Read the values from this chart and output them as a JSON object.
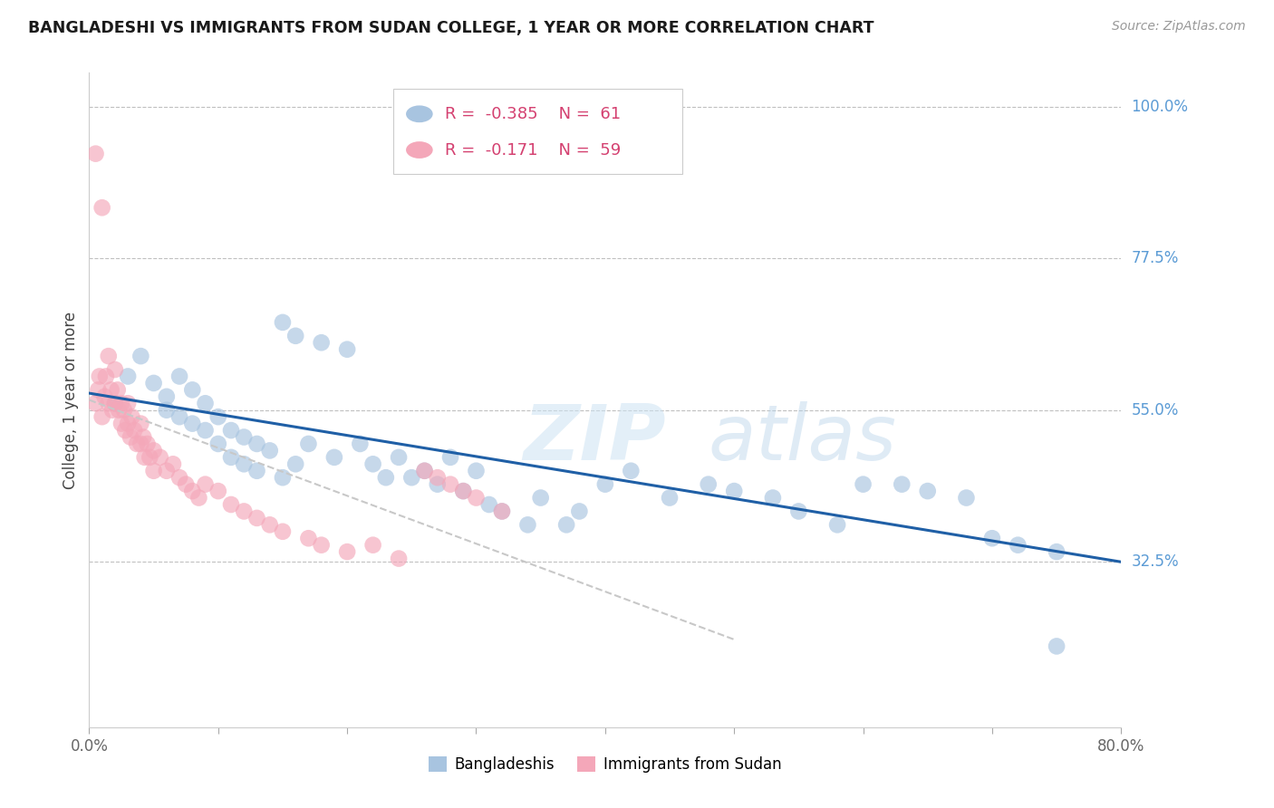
{
  "title": "BANGLADESHI VS IMMIGRANTS FROM SUDAN COLLEGE, 1 YEAR OR MORE CORRELATION CHART",
  "source": "Source: ZipAtlas.com",
  "ylabel": "College, 1 year or more",
  "xlim": [
    0.0,
    0.8
  ],
  "ylim": [
    0.08,
    1.05
  ],
  "xticks": [
    0.0,
    0.1,
    0.2,
    0.3,
    0.4,
    0.5,
    0.6,
    0.7,
    0.8
  ],
  "xticklabels": [
    "0.0%",
    "",
    "",
    "",
    "",
    "",
    "",
    "",
    "80.0%"
  ],
  "yticks": [
    0.325,
    0.55,
    0.775,
    1.0
  ],
  "yticklabels": [
    "32.5%",
    "55.0%",
    "77.5%",
    "100.0%"
  ],
  "ytick_color": "#5b9bd5",
  "grid_color": "#c0c0c0",
  "watermark_text": "ZIPatlas",
  "legend_r1": "-0.385",
  "legend_n1": "61",
  "legend_r2": "-0.171",
  "legend_n2": "59",
  "blue_color": "#a8c4e0",
  "pink_color": "#f4a7b9",
  "trend_blue_color": "#1f5fa6",
  "trend_pink_color": "#c8c8c8",
  "blue_trend_x0": 0.0,
  "blue_trend_y0": 0.575,
  "blue_trend_x1": 0.8,
  "blue_trend_y1": 0.325,
  "pink_trend_x0": 0.0,
  "pink_trend_y0": 0.565,
  "pink_trend_x1": 0.5,
  "pink_trend_y1": 0.21,
  "bangladeshi_x": [
    0.02,
    0.03,
    0.04,
    0.05,
    0.06,
    0.06,
    0.07,
    0.07,
    0.08,
    0.08,
    0.09,
    0.09,
    0.1,
    0.1,
    0.11,
    0.11,
    0.12,
    0.12,
    0.13,
    0.13,
    0.14,
    0.15,
    0.15,
    0.16,
    0.16,
    0.17,
    0.18,
    0.19,
    0.2,
    0.21,
    0.22,
    0.23,
    0.24,
    0.25,
    0.26,
    0.27,
    0.28,
    0.29,
    0.3,
    0.31,
    0.32,
    0.34,
    0.35,
    0.37,
    0.38,
    0.4,
    0.42,
    0.45,
    0.48,
    0.5,
    0.53,
    0.55,
    0.58,
    0.6,
    0.63,
    0.65,
    0.68,
    0.7,
    0.72,
    0.75,
    0.75
  ],
  "bangladeshi_y": [
    0.56,
    0.6,
    0.63,
    0.59,
    0.55,
    0.57,
    0.6,
    0.54,
    0.58,
    0.53,
    0.52,
    0.56,
    0.5,
    0.54,
    0.48,
    0.52,
    0.47,
    0.51,
    0.46,
    0.5,
    0.49,
    0.45,
    0.68,
    0.47,
    0.66,
    0.5,
    0.65,
    0.48,
    0.64,
    0.5,
    0.47,
    0.45,
    0.48,
    0.45,
    0.46,
    0.44,
    0.48,
    0.43,
    0.46,
    0.41,
    0.4,
    0.38,
    0.42,
    0.38,
    0.4,
    0.44,
    0.46,
    0.42,
    0.44,
    0.43,
    0.42,
    0.4,
    0.38,
    0.44,
    0.44,
    0.43,
    0.42,
    0.36,
    0.35,
    0.34,
    0.2
  ],
  "sudan_x": [
    0.005,
    0.005,
    0.007,
    0.008,
    0.01,
    0.01,
    0.012,
    0.013,
    0.015,
    0.015,
    0.017,
    0.018,
    0.02,
    0.02,
    0.022,
    0.023,
    0.025,
    0.025,
    0.027,
    0.028,
    0.03,
    0.03,
    0.032,
    0.033,
    0.035,
    0.037,
    0.04,
    0.04,
    0.042,
    0.043,
    0.045,
    0.047,
    0.05,
    0.05,
    0.055,
    0.06,
    0.065,
    0.07,
    0.075,
    0.08,
    0.085,
    0.09,
    0.1,
    0.11,
    0.12,
    0.13,
    0.14,
    0.15,
    0.17,
    0.18,
    0.2,
    0.22,
    0.24,
    0.26,
    0.27,
    0.28,
    0.29,
    0.3,
    0.32
  ],
  "sudan_y": [
    0.93,
    0.56,
    0.58,
    0.6,
    0.85,
    0.54,
    0.57,
    0.6,
    0.63,
    0.56,
    0.58,
    0.55,
    0.61,
    0.56,
    0.58,
    0.55,
    0.56,
    0.53,
    0.55,
    0.52,
    0.56,
    0.53,
    0.51,
    0.54,
    0.52,
    0.5,
    0.53,
    0.5,
    0.51,
    0.48,
    0.5,
    0.48,
    0.49,
    0.46,
    0.48,
    0.46,
    0.47,
    0.45,
    0.44,
    0.43,
    0.42,
    0.44,
    0.43,
    0.41,
    0.4,
    0.39,
    0.38,
    0.37,
    0.36,
    0.35,
    0.34,
    0.35,
    0.33,
    0.46,
    0.45,
    0.44,
    0.43,
    0.42,
    0.4
  ]
}
